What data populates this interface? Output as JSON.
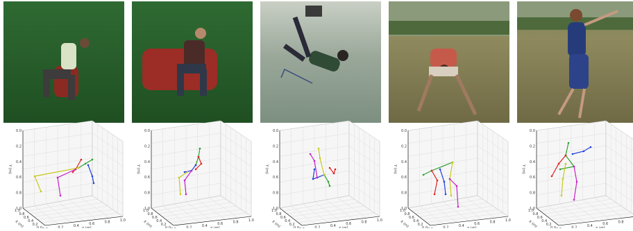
{
  "axes": {
    "vertical_ticks": [
      "0.0",
      "0.2",
      "0.4",
      "0.6",
      "0.8",
      "1.0"
    ],
    "depth_ticks": [
      "0.0",
      "0.2",
      "0.4",
      "0.6",
      "0.8",
      "1.0"
    ],
    "horizontal_ticks": [
      "0.0",
      "0.2",
      "0.4",
      "0.6",
      "0.8",
      "1.0"
    ],
    "vertical_label": "Y (m)",
    "depth_label": "X (m)",
    "horizontal_label": "Z (m)"
  }
}
